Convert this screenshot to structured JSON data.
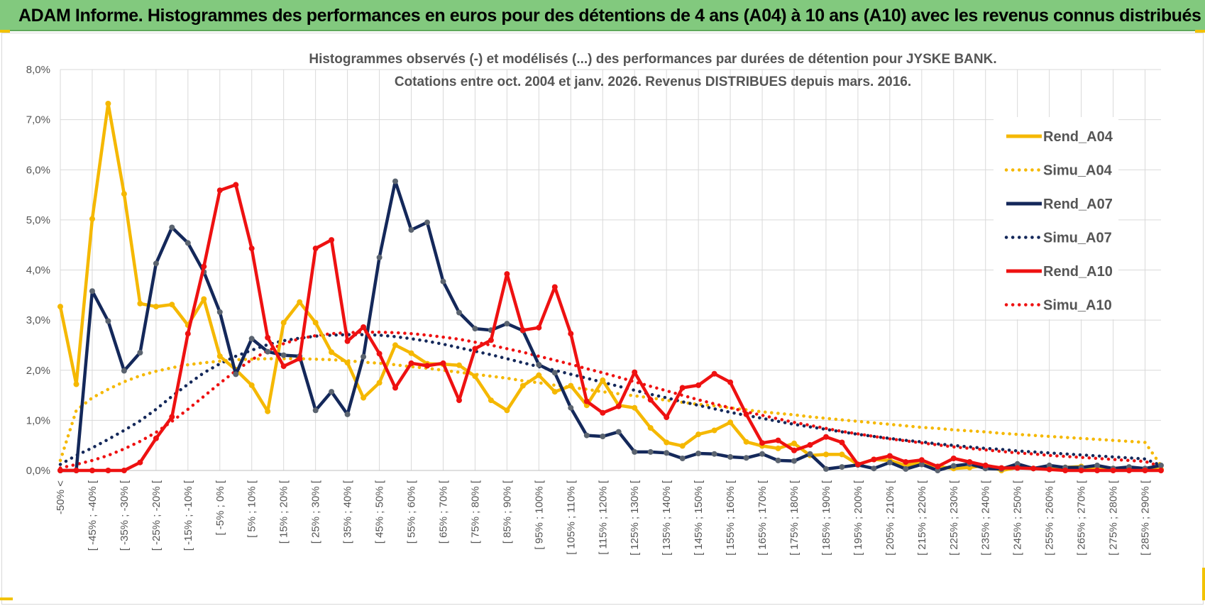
{
  "banner": {
    "title": "ADAM Informe. Histogrammes des performances en euros pour des détentions de 4 ans (A04) à 10 ans (A10) avec les revenus connus distribués"
  },
  "colors": {
    "banner": "#82c97e",
    "A04": "#f5b800",
    "A07": "#14285a",
    "A07_marker": "#5b6470",
    "A10": "#ee1111",
    "grid": "#d9d9d9"
  },
  "chart_data": {
    "type": "line",
    "title_lines": [
      "Histogrammes observés (-) et modélisés (...) des performances par durées de détention pour JYSKE BANK.",
      "Cotations entre oct. 2004 et janv. 2026. Revenus DISTRIBUES depuis mars. 2016."
    ],
    "xlabel": "",
    "ylabel": "",
    "ylim": [
      0,
      0.08
    ],
    "yticks": [
      0,
      0.01,
      0.02,
      0.03,
      0.04,
      0.05,
      0.06,
      0.07,
      0.08
    ],
    "ytick_labels": [
      "0,0%",
      "1,0%",
      "2,0%",
      "3,0%",
      "4,0%",
      "5,0%",
      "6,0%",
      "7,0%",
      "8,0%"
    ],
    "x_count": 70,
    "x_labels_shown": [
      {
        "index": 0,
        "label": "-50% <"
      },
      {
        "index": 2,
        "label": "[ -45% ; -40% ["
      },
      {
        "index": 4,
        "label": "[ -35% ; -30% ["
      },
      {
        "index": 6,
        "label": "[ -25% ; -20% ["
      },
      {
        "index": 8,
        "label": "[ -15% ; -10% ["
      },
      {
        "index": 10,
        "label": "[ -5% ; 0% ["
      },
      {
        "index": 12,
        "label": "[ 5% ; 10% ["
      },
      {
        "index": 14,
        "label": "[ 15% ; 20% ["
      },
      {
        "index": 16,
        "label": "[ 25% ; 30% ["
      },
      {
        "index": 18,
        "label": "[ 35% ; 40% ["
      },
      {
        "index": 20,
        "label": "[ 45% ; 50% ["
      },
      {
        "index": 22,
        "label": "[ 55% ; 60% ["
      },
      {
        "index": 24,
        "label": "[ 65% ; 70% ["
      },
      {
        "index": 26,
        "label": "[ 75% ; 80% ["
      },
      {
        "index": 28,
        "label": "[ 85% ; 90% ["
      },
      {
        "index": 30,
        "label": "[ 95% ; 100% ["
      },
      {
        "index": 32,
        "label": "[ 105% ; 110% ["
      },
      {
        "index": 34,
        "label": "[ 115% ; 120% ["
      },
      {
        "index": 36,
        "label": "[ 125% ; 130% ["
      },
      {
        "index": 38,
        "label": "[ 135% ; 140% ["
      },
      {
        "index": 40,
        "label": "[ 145% ; 150% ["
      },
      {
        "index": 42,
        "label": "[ 155% ; 160% ["
      },
      {
        "index": 44,
        "label": "[ 165% ; 170% ["
      },
      {
        "index": 46,
        "label": "[ 175% ; 180% ["
      },
      {
        "index": 48,
        "label": "[ 185% ; 190% ["
      },
      {
        "index": 50,
        "label": "[ 195% ; 200% ["
      },
      {
        "index": 52,
        "label": "[ 205% ; 210% ["
      },
      {
        "index": 54,
        "label": "[ 215% ; 220% ["
      },
      {
        "index": 56,
        "label": "[ 225% ; 230% ["
      },
      {
        "index": 58,
        "label": "[ 235% ; 240% ["
      },
      {
        "index": 60,
        "label": "[ 245% ; 250% ["
      },
      {
        "index": 62,
        "label": "[ 255% ; 260% ["
      },
      {
        "index": 64,
        "label": "[ 265% ; 270% ["
      },
      {
        "index": 66,
        "label": "[ 275% ; 280% ["
      },
      {
        "index": 68,
        "label": "[ 285% ; 290% ["
      }
    ],
    "legend_position": "right",
    "grid": true,
    "series": [
      {
        "name": "Rend_A04",
        "style": "solid",
        "color_key": "A04",
        "values": [
          0.0327,
          0.0172,
          0.0502,
          0.0732,
          0.0552,
          0.0333,
          0.0327,
          0.0331,
          0.029,
          0.0342,
          0.0228,
          0.0201,
          0.017,
          0.0118,
          0.0295,
          0.0336,
          0.0295,
          0.0236,
          0.0215,
          0.0145,
          0.0175,
          0.025,
          0.0234,
          0.0213,
          0.0212,
          0.021,
          0.0188,
          0.014,
          0.012,
          0.0169,
          0.019,
          0.0157,
          0.0169,
          0.013,
          0.018,
          0.013,
          0.0125,
          0.0085,
          0.0056,
          0.0049,
          0.0072,
          0.008,
          0.0096,
          0.0057,
          0.0049,
          0.0044,
          0.0054,
          0.003,
          0.0032,
          0.0032,
          0.0012,
          0.0022,
          0.002,
          0.001,
          0.0016,
          0.0008,
          0.0004,
          0.0006,
          0.001,
          0.0,
          0.0006,
          0.0004,
          0.0004,
          0.0006,
          0.0008,
          0.0002,
          0.0004,
          0.0002,
          0.0003,
          0.0002
        ]
      },
      {
        "name": "Simu_A04",
        "style": "dotted",
        "color_key": "A04",
        "values": [
          0.002,
          0.012,
          0.0145,
          0.0162,
          0.0177,
          0.0189,
          0.0198,
          0.0205,
          0.0211,
          0.0215,
          0.0218,
          0.0221,
          0.0222,
          0.0223,
          0.0223,
          0.0223,
          0.0222,
          0.0221,
          0.0219,
          0.0216,
          0.0214,
          0.0211,
          0.0207,
          0.0204,
          0.02,
          0.0196,
          0.0192,
          0.0188,
          0.0184,
          0.0179,
          0.0175,
          0.017,
          0.0166,
          0.0162,
          0.0157,
          0.0153,
          0.0149,
          0.0145,
          0.014,
          0.0136,
          0.0132,
          0.0129,
          0.0125,
          0.0121,
          0.0117,
          0.0114,
          0.0111,
          0.0107,
          0.0104,
          0.0101,
          0.0098,
          0.0095,
          0.0092,
          0.0089,
          0.0086,
          0.0084,
          0.0081,
          0.0079,
          0.0077,
          0.0074,
          0.0072,
          0.007,
          0.0068,
          0.0066,
          0.0064,
          0.0062,
          0.006,
          0.0058,
          0.0056,
          0.001
        ]
      },
      {
        "name": "Rend_A07",
        "style": "solid",
        "color_key": "A07",
        "values": [
          0.0,
          0.0,
          0.0358,
          0.0298,
          0.0199,
          0.0235,
          0.0413,
          0.0485,
          0.0454,
          0.0396,
          0.0316,
          0.0192,
          0.0263,
          0.0237,
          0.023,
          0.0228,
          0.012,
          0.0157,
          0.0112,
          0.0227,
          0.0425,
          0.0577,
          0.048,
          0.0495,
          0.0377,
          0.0315,
          0.0283,
          0.028,
          0.0293,
          0.0279,
          0.0211,
          0.0195,
          0.0125,
          0.007,
          0.0068,
          0.0077,
          0.0037,
          0.0037,
          0.0035,
          0.0024,
          0.0034,
          0.0033,
          0.0027,
          0.0025,
          0.0033,
          0.002,
          0.0019,
          0.0033,
          0.0003,
          0.0007,
          0.0011,
          0.0004,
          0.0016,
          0.0003,
          0.0012,
          0.0,
          0.0009,
          0.0013,
          0.0004,
          0.0003,
          0.0013,
          0.0004,
          0.001,
          0.0006,
          0.0006,
          0.001,
          0.0004,
          0.0007,
          0.0004,
          0.001
        ]
      },
      {
        "name": "Simu_A07",
        "style": "dotted",
        "color_key": "A07",
        "values": [
          0.0012,
          0.003,
          0.0045,
          0.0062,
          0.008,
          0.0099,
          0.0122,
          0.0148,
          0.0172,
          0.0195,
          0.0213,
          0.0228,
          0.024,
          0.0251,
          0.0259,
          0.0264,
          0.0268,
          0.027,
          0.0271,
          0.0271,
          0.027,
          0.0267,
          0.0263,
          0.0258,
          0.0252,
          0.0245,
          0.0238,
          0.0231,
          0.0223,
          0.0215,
          0.0207,
          0.02,
          0.0192,
          0.0184,
          0.0176,
          0.0168,
          0.016,
          0.0152,
          0.0145,
          0.0137,
          0.013,
          0.0123,
          0.0116,
          0.011,
          0.0104,
          0.0098,
          0.0092,
          0.0087,
          0.0082,
          0.0077,
          0.0072,
          0.0068,
          0.0064,
          0.006,
          0.0057,
          0.0053,
          0.005,
          0.0047,
          0.0044,
          0.0042,
          0.0039,
          0.0037,
          0.0035,
          0.0033,
          0.0031,
          0.0029,
          0.0027,
          0.0025,
          0.0023,
          0.001
        ]
      },
      {
        "name": "Rend_A10",
        "style": "solid",
        "color_key": "A10",
        "values": [
          0.0,
          0.0,
          0.0,
          0.0,
          0.0,
          0.0016,
          0.0064,
          0.0107,
          0.0273,
          0.0407,
          0.0559,
          0.057,
          0.0443,
          0.0265,
          0.0208,
          0.0223,
          0.0443,
          0.046,
          0.0258,
          0.0286,
          0.0233,
          0.0165,
          0.0214,
          0.0209,
          0.0214,
          0.014,
          0.0243,
          0.026,
          0.0392,
          0.028,
          0.0285,
          0.0366,
          0.0273,
          0.0138,
          0.0115,
          0.0128,
          0.0196,
          0.0141,
          0.0106,
          0.0165,
          0.017,
          0.0193,
          0.0176,
          0.0112,
          0.0055,
          0.006,
          0.004,
          0.0051,
          0.0067,
          0.0056,
          0.0012,
          0.0022,
          0.0029,
          0.0017,
          0.0021,
          0.0008,
          0.0024,
          0.0017,
          0.001,
          0.0005,
          0.0005,
          0.0004,
          0.0002,
          0.0,
          0.0,
          0.0,
          0.0,
          0.0,
          0.0,
          0.0
        ]
      },
      {
        "name": "Simu_A10",
        "style": "dotted",
        "color_key": "A10",
        "values": [
          0.0005,
          0.0012,
          0.002,
          0.003,
          0.0043,
          0.0058,
          0.0076,
          0.0098,
          0.0122,
          0.0148,
          0.0174,
          0.0199,
          0.0221,
          0.0239,
          0.0253,
          0.0263,
          0.0269,
          0.0273,
          0.0275,
          0.0276,
          0.0276,
          0.0275,
          0.0273,
          0.027,
          0.0266,
          0.0262,
          0.0256,
          0.025,
          0.0243,
          0.0236,
          0.0228,
          0.022,
          0.0212,
          0.0203,
          0.0195,
          0.0186,
          0.0177,
          0.0168,
          0.0159,
          0.015,
          0.0141,
          0.0133,
          0.0125,
          0.0117,
          0.011,
          0.0103,
          0.0096,
          0.009,
          0.0084,
          0.0078,
          0.0073,
          0.0068,
          0.0063,
          0.0059,
          0.0055,
          0.0051,
          0.0047,
          0.0044,
          0.0041,
          0.0038,
          0.0035,
          0.0033,
          0.003,
          0.0028,
          0.0026,
          0.0024,
          0.0022,
          0.002,
          0.0018,
          0.0008
        ]
      }
    ]
  }
}
